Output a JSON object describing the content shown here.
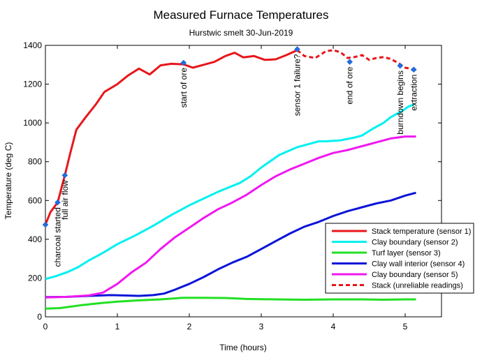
{
  "chart_data": {
    "type": "line",
    "title": "Measured Furnace Temperatures",
    "subtitle": "Hurstwic smelt 30-Jun-2019",
    "xlabel": "Time (hours)",
    "ylabel": "Temperature (deg C)",
    "xlim": [
      0,
      5.5
    ],
    "ylim": [
      0,
      1400
    ],
    "xticks": [
      0,
      1,
      2,
      3,
      4,
      5
    ],
    "yticks": [
      0,
      200,
      400,
      600,
      800,
      1000,
      1200,
      1400
    ],
    "grid": false,
    "legend_position": "bottom-right",
    "series": [
      {
        "name": "Stack temperature (sensor 1)",
        "color": "#e8161b",
        "style": "solid",
        "points": [
          [
            0,
            475
          ],
          [
            0.07,
            540
          ],
          [
            0.17,
            590
          ],
          [
            0.27,
            730
          ],
          [
            0.35,
            850
          ],
          [
            0.43,
            965
          ],
          [
            0.55,
            1025
          ],
          [
            0.7,
            1095
          ],
          [
            0.82,
            1160
          ],
          [
            1.0,
            1200
          ],
          [
            1.15,
            1245
          ],
          [
            1.3,
            1280
          ],
          [
            1.45,
            1250
          ],
          [
            1.6,
            1297
          ],
          [
            1.75,
            1305
          ],
          [
            1.92,
            1302
          ],
          [
            2.05,
            1285
          ],
          [
            2.2,
            1300
          ],
          [
            2.35,
            1315
          ],
          [
            2.5,
            1345
          ],
          [
            2.63,
            1362
          ],
          [
            2.75,
            1338
          ],
          [
            2.9,
            1345
          ],
          [
            3.05,
            1325
          ],
          [
            3.2,
            1328
          ],
          [
            3.35,
            1350
          ],
          [
            3.5,
            1375
          ]
        ]
      },
      {
        "name": "Clay boundary (sensor 2)",
        "color": "#00f0f0",
        "style": "solid",
        "points": [
          [
            0,
            195
          ],
          [
            0.15,
            210
          ],
          [
            0.3,
            230
          ],
          [
            0.45,
            255
          ],
          [
            0.6,
            290
          ],
          [
            0.8,
            330
          ],
          [
            1.0,
            375
          ],
          [
            1.25,
            420
          ],
          [
            1.5,
            470
          ],
          [
            1.75,
            525
          ],
          [
            2.0,
            575
          ],
          [
            2.2,
            610
          ],
          [
            2.4,
            645
          ],
          [
            2.6,
            675
          ],
          [
            2.7,
            690
          ],
          [
            2.85,
            725
          ],
          [
            3.0,
            770
          ],
          [
            3.25,
            835
          ],
          [
            3.5,
            875
          ],
          [
            3.7,
            895
          ],
          [
            3.8,
            905
          ],
          [
            3.9,
            905
          ],
          [
            4.1,
            910
          ],
          [
            4.3,
            925
          ],
          [
            4.4,
            935
          ],
          [
            4.55,
            970
          ],
          [
            4.7,
            1000
          ],
          [
            4.8,
            1030
          ],
          [
            4.95,
            1060
          ],
          [
            5.05,
            1085
          ],
          [
            5.12,
            1095
          ]
        ]
      },
      {
        "name": "Turf layer (sensor 3)",
        "color": "#22e022",
        "style": "solid",
        "points": [
          [
            0,
            42
          ],
          [
            0.2,
            45
          ],
          [
            0.5,
            60
          ],
          [
            0.8,
            72
          ],
          [
            1.0,
            78
          ],
          [
            1.3,
            85
          ],
          [
            1.6,
            90
          ],
          [
            1.9,
            98
          ],
          [
            2.2,
            98
          ],
          [
            2.5,
            97
          ],
          [
            2.8,
            92
          ],
          [
            3.2,
            90
          ],
          [
            3.6,
            88
          ],
          [
            4.0,
            90
          ],
          [
            4.4,
            90
          ],
          [
            4.7,
            88
          ],
          [
            5.0,
            90
          ],
          [
            5.15,
            90
          ]
        ]
      },
      {
        "name": "Clay wall interior (sensor 4)",
        "color": "#0a14d8",
        "style": "solid",
        "points": [
          [
            0,
            102
          ],
          [
            0.3,
            103
          ],
          [
            0.6,
            108
          ],
          [
            0.9,
            112
          ],
          [
            1.1,
            110
          ],
          [
            1.3,
            108
          ],
          [
            1.5,
            112
          ],
          [
            1.65,
            120
          ],
          [
            1.8,
            140
          ],
          [
            2.0,
            170
          ],
          [
            2.2,
            205
          ],
          [
            2.4,
            245
          ],
          [
            2.6,
            280
          ],
          [
            2.8,
            310
          ],
          [
            3.0,
            350
          ],
          [
            3.2,
            390
          ],
          [
            3.4,
            430
          ],
          [
            3.6,
            465
          ],
          [
            3.8,
            490
          ],
          [
            4.0,
            520
          ],
          [
            4.2,
            545
          ],
          [
            4.4,
            565
          ],
          [
            4.6,
            585
          ],
          [
            4.8,
            600
          ],
          [
            5.0,
            625
          ],
          [
            5.15,
            640
          ]
        ]
      },
      {
        "name": "Clay boundary (sensor 5)",
        "color": "#f018f0",
        "style": "solid",
        "points": [
          [
            0,
            100
          ],
          [
            0.3,
            103
          ],
          [
            0.6,
            110
          ],
          [
            0.8,
            125
          ],
          [
            1.0,
            170
          ],
          [
            1.2,
            230
          ],
          [
            1.4,
            280
          ],
          [
            1.6,
            350
          ],
          [
            1.8,
            410
          ],
          [
            2.0,
            460
          ],
          [
            2.2,
            510
          ],
          [
            2.4,
            555
          ],
          [
            2.6,
            590
          ],
          [
            2.8,
            630
          ],
          [
            3.0,
            680
          ],
          [
            3.2,
            725
          ],
          [
            3.4,
            760
          ],
          [
            3.6,
            790
          ],
          [
            3.8,
            820
          ],
          [
            4.0,
            845
          ],
          [
            4.2,
            860
          ],
          [
            4.4,
            880
          ],
          [
            4.6,
            900
          ],
          [
            4.8,
            920
          ],
          [
            5.0,
            930
          ],
          [
            5.15,
            930
          ]
        ]
      },
      {
        "name": "Stack (unreliable readings)",
        "color": "#e8161b",
        "style": "dashed",
        "points": [
          [
            3.5,
            1375
          ],
          [
            3.6,
            1345
          ],
          [
            3.75,
            1335
          ],
          [
            3.9,
            1370
          ],
          [
            4.0,
            1375
          ],
          [
            4.1,
            1365
          ],
          [
            4.2,
            1335
          ],
          [
            4.3,
            1340
          ],
          [
            4.4,
            1350
          ],
          [
            4.5,
            1325
          ],
          [
            4.6,
            1335
          ],
          [
            4.7,
            1340
          ],
          [
            4.8,
            1330
          ],
          [
            4.9,
            1310
          ],
          [
            5.0,
            1285
          ],
          [
            5.07,
            1280
          ],
          [
            5.12,
            1270
          ]
        ]
      }
    ],
    "annotations": [
      {
        "label": "charcoal started",
        "x": 0.17,
        "y": 590
      },
      {
        "label": "full air flow",
        "x": 0.27,
        "y": 730
      },
      {
        "label": "start of ore",
        "x": 1.92,
        "y": 1310
      },
      {
        "label": "sensor 1 failure?",
        "x": 3.5,
        "y": 1380
      },
      {
        "label": "end of ore",
        "x": 4.23,
        "y": 1315
      },
      {
        "label": "burndown begins",
        "x": 4.93,
        "y": 1295
      },
      {
        "label": "extraction",
        "x": 5.12,
        "y": 1275
      }
    ],
    "extra_markers": [
      {
        "x": 0,
        "y": 475
      }
    ]
  }
}
